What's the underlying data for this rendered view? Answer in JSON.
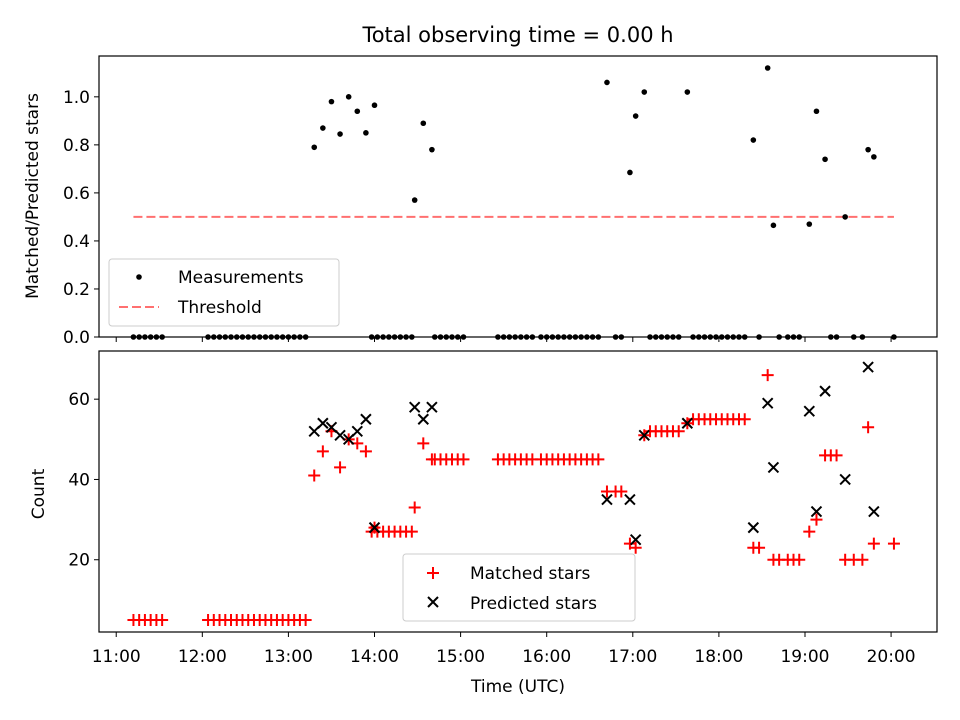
{
  "chart_data": [
    {
      "type": "scatter",
      "panel": "top",
      "title": "Total observing time = 0.00 h",
      "ylabel": "Matched/Predicted stars",
      "xlabel": "",
      "ylim": [
        0,
        1.17
      ],
      "yticks": [
        0.0,
        0.2,
        0.4,
        0.6,
        0.8,
        1.0
      ],
      "ytick_labels": [
        "0.0",
        "0.2",
        "0.4",
        "0.6",
        "0.8",
        "1.0"
      ],
      "legend_position": "lower-left",
      "series": [
        {
          "name": "Measurements",
          "marker": "dot",
          "color": "#000000",
          "points": [
            [
              "11:12",
              0
            ],
            [
              "11:16",
              0
            ],
            [
              "11:20",
              0
            ],
            [
              "11:24",
              0
            ],
            [
              "11:28",
              0
            ],
            [
              "11:32",
              0
            ],
            [
              "12:04",
              0
            ],
            [
              "12:08",
              0
            ],
            [
              "12:12",
              0
            ],
            [
              "12:16",
              0
            ],
            [
              "12:20",
              0
            ],
            [
              "12:24",
              0
            ],
            [
              "12:28",
              0
            ],
            [
              "12:32",
              0
            ],
            [
              "12:36",
              0
            ],
            [
              "12:40",
              0
            ],
            [
              "12:44",
              0
            ],
            [
              "12:48",
              0
            ],
            [
              "12:52",
              0
            ],
            [
              "12:56",
              0
            ],
            [
              "13:00",
              0
            ],
            [
              "13:04",
              0
            ],
            [
              "13:08",
              0
            ],
            [
              "13:12",
              0
            ],
            [
              "13:18",
              0.79
            ],
            [
              "13:24",
              0.87
            ],
            [
              "13:30",
              0.98
            ],
            [
              "13:36",
              0.845
            ],
            [
              "13:42",
              1.0
            ],
            [
              "13:48",
              0.94
            ],
            [
              "13:54",
              0.85
            ],
            [
              "14:00",
              0.965
            ],
            [
              "13:58",
              0
            ],
            [
              "14:02",
              0
            ],
            [
              "14:06",
              0
            ],
            [
              "14:10",
              0
            ],
            [
              "14:14",
              0
            ],
            [
              "14:18",
              0
            ],
            [
              "14:22",
              0
            ],
            [
              "14:26",
              0
            ],
            [
              "14:28",
              0.57
            ],
            [
              "14:34",
              0.89
            ],
            [
              "14:40",
              0.78
            ],
            [
              "14:42",
              0
            ],
            [
              "14:46",
              0
            ],
            [
              "14:50",
              0
            ],
            [
              "14:54",
              0
            ],
            [
              "14:58",
              0
            ],
            [
              "15:02",
              0
            ],
            [
              "15:26",
              0
            ],
            [
              "15:30",
              0
            ],
            [
              "15:34",
              0
            ],
            [
              "15:38",
              0
            ],
            [
              "15:42",
              0
            ],
            [
              "15:46",
              0
            ],
            [
              "15:50",
              0
            ],
            [
              "15:56",
              0
            ],
            [
              "16:00",
              0
            ],
            [
              "16:04",
              0
            ],
            [
              "16:08",
              0
            ],
            [
              "16:12",
              0
            ],
            [
              "16:16",
              0
            ],
            [
              "16:20",
              0
            ],
            [
              "16:24",
              0
            ],
            [
              "16:28",
              0
            ],
            [
              "16:32",
              0
            ],
            [
              "16:36",
              0
            ],
            [
              "16:42",
              1.06
            ],
            [
              "16:48",
              0
            ],
            [
              "16:52",
              0
            ],
            [
              "16:58",
              0.685
            ],
            [
              "17:02",
              0.92
            ],
            [
              "17:08",
              1.02
            ],
            [
              "17:12",
              0
            ],
            [
              "17:16",
              0
            ],
            [
              "17:20",
              0
            ],
            [
              "17:24",
              0
            ],
            [
              "17:28",
              0
            ],
            [
              "17:32",
              0
            ],
            [
              "17:38",
              1.02
            ],
            [
              "17:42",
              0
            ],
            [
              "17:46",
              0
            ],
            [
              "17:50",
              0
            ],
            [
              "17:54",
              0
            ],
            [
              "17:58",
              0
            ],
            [
              "18:02",
              0
            ],
            [
              "18:06",
              0
            ],
            [
              "18:10",
              0
            ],
            [
              "18:14",
              0
            ],
            [
              "18:18",
              0
            ],
            [
              "18:24",
              0.82
            ],
            [
              "18:28",
              0
            ],
            [
              "18:34",
              1.12
            ],
            [
              "18:38",
              0.465
            ],
            [
              "18:42",
              0
            ],
            [
              "18:48",
              0
            ],
            [
              "18:52",
              0
            ],
            [
              "18:56",
              0
            ],
            [
              "19:03",
              0.47
            ],
            [
              "19:08",
              0.94
            ],
            [
              "19:14",
              0.74
            ],
            [
              "19:18",
              0
            ],
            [
              "19:22",
              0
            ],
            [
              "19:28",
              0.5
            ],
            [
              "19:34",
              0
            ],
            [
              "19:40",
              0
            ],
            [
              "19:44",
              0.78
            ],
            [
              "19:48",
              0.75
            ],
            [
              "20:02",
              0
            ]
          ]
        },
        {
          "name": "Threshold",
          "style": "dashed-line",
          "color": "#ff7070",
          "points": [
            [
              "11:12",
              0.5
            ],
            [
              "20:02",
              0.5
            ]
          ]
        }
      ]
    },
    {
      "type": "scatter",
      "panel": "bottom",
      "title": "",
      "ylabel": "Count",
      "xlabel": "Time (UTC)",
      "ylim": [
        2,
        72
      ],
      "yticks": [
        20,
        40,
        60
      ],
      "ytick_labels": [
        "20",
        "40",
        "60"
      ],
      "xlim": [
        "10:48",
        "20:32"
      ],
      "xticks": [
        "11:00",
        "12:00",
        "13:00",
        "14:00",
        "15:00",
        "16:00",
        "17:00",
        "18:00",
        "19:00",
        "20:00"
      ],
      "xtick_labels": [
        "11:00",
        "12:00",
        "13:00",
        "14:00",
        "15:00",
        "16:00",
        "17:00",
        "18:00",
        "19:00",
        "20:00"
      ],
      "legend_position": "lower-center",
      "series": [
        {
          "name": "Matched stars",
          "marker": "plus",
          "color": "#ff0000",
          "points": [
            [
              "11:12",
              5
            ],
            [
              "11:16",
              5
            ],
            [
              "11:20",
              5
            ],
            [
              "11:24",
              5
            ],
            [
              "11:28",
              5
            ],
            [
              "11:32",
              5
            ],
            [
              "12:04",
              5
            ],
            [
              "12:08",
              5
            ],
            [
              "12:12",
              5
            ],
            [
              "12:16",
              5
            ],
            [
              "12:20",
              5
            ],
            [
              "12:24",
              5
            ],
            [
              "12:28",
              5
            ],
            [
              "12:32",
              5
            ],
            [
              "12:36",
              5
            ],
            [
              "12:40",
              5
            ],
            [
              "12:44",
              5
            ],
            [
              "12:48",
              5
            ],
            [
              "12:52",
              5
            ],
            [
              "12:56",
              5
            ],
            [
              "13:00",
              5
            ],
            [
              "13:04",
              5
            ],
            [
              "13:08",
              5
            ],
            [
              "13:12",
              5
            ],
            [
              "13:18",
              41
            ],
            [
              "13:24",
              47
            ],
            [
              "13:30",
              52
            ],
            [
              "13:36",
              43
            ],
            [
              "13:42",
              50
            ],
            [
              "13:48",
              49
            ],
            [
              "13:54",
              47
            ],
            [
              "14:00",
              28
            ],
            [
              "13:58",
              27
            ],
            [
              "14:02",
              27
            ],
            [
              "14:06",
              27
            ],
            [
              "14:10",
              27
            ],
            [
              "14:14",
              27
            ],
            [
              "14:18",
              27
            ],
            [
              "14:22",
              27
            ],
            [
              "14:26",
              27
            ],
            [
              "14:28",
              33
            ],
            [
              "14:34",
              49
            ],
            [
              "14:40",
              45
            ],
            [
              "14:42",
              45
            ],
            [
              "14:46",
              45
            ],
            [
              "14:50",
              45
            ],
            [
              "14:54",
              45
            ],
            [
              "14:58",
              45
            ],
            [
              "15:02",
              45
            ],
            [
              "15:26",
              45
            ],
            [
              "15:30",
              45
            ],
            [
              "15:34",
              45
            ],
            [
              "15:38",
              45
            ],
            [
              "15:42",
              45
            ],
            [
              "15:46",
              45
            ],
            [
              "15:50",
              45
            ],
            [
              "15:56",
              45
            ],
            [
              "16:00",
              45
            ],
            [
              "16:04",
              45
            ],
            [
              "16:08",
              45
            ],
            [
              "16:12",
              45
            ],
            [
              "16:16",
              45
            ],
            [
              "16:20",
              45
            ],
            [
              "16:24",
              45
            ],
            [
              "16:28",
              45
            ],
            [
              "16:32",
              45
            ],
            [
              "16:36",
              45
            ],
            [
              "16:42",
              37
            ],
            [
              "16:48",
              37
            ],
            [
              "16:52",
              37
            ],
            [
              "16:58",
              24
            ],
            [
              "17:02",
              23
            ],
            [
              "17:08",
              51
            ],
            [
              "17:12",
              52
            ],
            [
              "17:16",
              52
            ],
            [
              "17:20",
              52
            ],
            [
              "17:24",
              52
            ],
            [
              "17:28",
              52
            ],
            [
              "17:32",
              52
            ],
            [
              "17:38",
              54
            ],
            [
              "17:42",
              55
            ],
            [
              "17:46",
              55
            ],
            [
              "17:50",
              55
            ],
            [
              "17:54",
              55
            ],
            [
              "17:58",
              55
            ],
            [
              "18:02",
              55
            ],
            [
              "18:06",
              55
            ],
            [
              "18:10",
              55
            ],
            [
              "18:14",
              55
            ],
            [
              "18:18",
              55
            ],
            [
              "18:24",
              23
            ],
            [
              "18:28",
              23
            ],
            [
              "18:34",
              66
            ],
            [
              "18:38",
              20
            ],
            [
              "18:42",
              20
            ],
            [
              "18:48",
              20
            ],
            [
              "18:52",
              20
            ],
            [
              "18:56",
              20
            ],
            [
              "19:03",
              27
            ],
            [
              "19:08",
              30
            ],
            [
              "19:14",
              46
            ],
            [
              "19:18",
              46
            ],
            [
              "19:22",
              46
            ],
            [
              "19:28",
              20
            ],
            [
              "19:34",
              20
            ],
            [
              "19:40",
              20
            ],
            [
              "19:44",
              53
            ],
            [
              "19:48",
              24
            ],
            [
              "20:02",
              24
            ]
          ]
        },
        {
          "name": "Predicted stars",
          "marker": "x",
          "color": "#000000",
          "points": [
            [
              "13:18",
              52
            ],
            [
              "13:24",
              54
            ],
            [
              "13:30",
              53
            ],
            [
              "13:36",
              51
            ],
            [
              "13:42",
              50
            ],
            [
              "13:48",
              52
            ],
            [
              "13:54",
              55
            ],
            [
              "14:00",
              28
            ],
            [
              "14:28",
              58
            ],
            [
              "14:34",
              55
            ],
            [
              "14:40",
              58
            ],
            [
              "16:42",
              35
            ],
            [
              "16:58",
              35
            ],
            [
              "17:02",
              25
            ],
            [
              "17:08",
              51
            ],
            [
              "17:38",
              54
            ],
            [
              "18:24",
              28
            ],
            [
              "18:34",
              59
            ],
            [
              "18:38",
              43
            ],
            [
              "19:03",
              57
            ],
            [
              "19:08",
              32
            ],
            [
              "19:14",
              62
            ],
            [
              "19:28",
              40
            ],
            [
              "19:44",
              68
            ],
            [
              "19:48",
              32
            ]
          ]
        }
      ]
    }
  ]
}
